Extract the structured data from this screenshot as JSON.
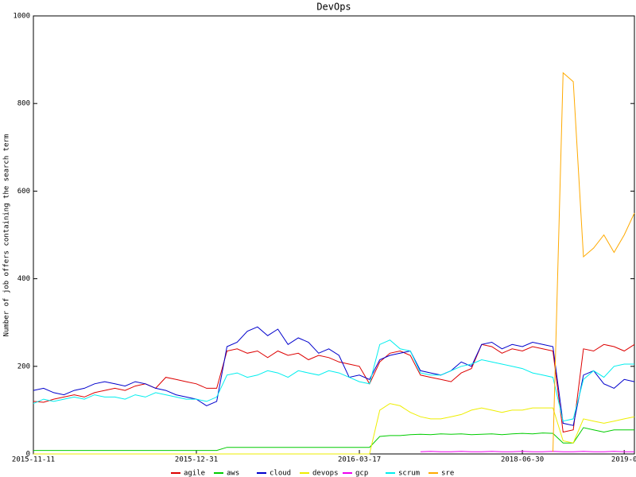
{
  "chart_data": {
    "type": "line",
    "title": "DevOps",
    "y_label": "Number of job offers containing the search term",
    "categories": [
      "2015-11-11",
      null,
      null,
      null,
      null,
      null,
      null,
      null,
      null,
      null,
      null,
      null,
      null,
      null,
      null,
      null,
      "2015-12-31",
      null,
      null,
      null,
      null,
      null,
      null,
      null,
      null,
      null,
      null,
      null,
      null,
      null,
      null,
      null,
      "2016-03-17",
      null,
      null,
      null,
      null,
      null,
      null,
      null,
      null,
      null,
      null,
      null,
      null,
      null,
      null,
      null,
      "2018-06-30",
      null,
      null,
      null,
      null,
      null,
      null,
      null,
      null,
      null,
      "2019-0",
      null
    ],
    "ylim": [
      0,
      1000
    ],
    "yticks": [
      0,
      200,
      400,
      600,
      800,
      1000
    ],
    "grid": false,
    "series": [
      {
        "name": "agile",
        "color": "#dd0000",
        "values": [
          120,
          118,
          125,
          130,
          135,
          130,
          140,
          145,
          150,
          145,
          155,
          160,
          150,
          175,
          170,
          165,
          160,
          150,
          150,
          235,
          240,
          230,
          235,
          220,
          235,
          225,
          230,
          215,
          225,
          220,
          210,
          205,
          200,
          160,
          210,
          230,
          235,
          225,
          180,
          175,
          170,
          165,
          185,
          195,
          250,
          245,
          230,
          240,
          235,
          245,
          240,
          235,
          50,
          55,
          240,
          235,
          250,
          245,
          235,
          250
        ]
      },
      {
        "name": "aws",
        "color": "#00cc00",
        "values": [
          8,
          8,
          8,
          8,
          8,
          8,
          8,
          8,
          8,
          8,
          8,
          8,
          8,
          8,
          8,
          8,
          8,
          8,
          8,
          15,
          15,
          15,
          15,
          15,
          15,
          15,
          15,
          15,
          15,
          15,
          15,
          15,
          15,
          15,
          40,
          42,
          42,
          44,
          45,
          44,
          46,
          45,
          46,
          44,
          45,
          46,
          44,
          46,
          47,
          46,
          48,
          47,
          25,
          25,
          60,
          55,
          50,
          55,
          55,
          55
        ]
      },
      {
        "name": "cloud",
        "color": "#0000cc",
        "values": [
          145,
          150,
          140,
          135,
          145,
          150,
          160,
          165,
          160,
          155,
          165,
          160,
          150,
          145,
          135,
          130,
          125,
          110,
          120,
          245,
          255,
          280,
          290,
          270,
          285,
          250,
          265,
          255,
          230,
          240,
          225,
          175,
          180,
          170,
          215,
          225,
          230,
          235,
          190,
          185,
          180,
          190,
          210,
          200,
          250,
          255,
          240,
          250,
          245,
          255,
          250,
          245,
          70,
          65,
          180,
          190,
          160,
          150,
          170,
          165
        ]
      },
      {
        "name": "devops",
        "color": "#eeee00",
        "values": [
          0,
          0,
          0,
          0,
          0,
          0,
          0,
          0,
          0,
          0,
          0,
          0,
          0,
          0,
          0,
          0,
          0,
          0,
          0,
          0,
          0,
          0,
          0,
          0,
          0,
          0,
          0,
          0,
          0,
          0,
          0,
          0,
          0,
          0,
          100,
          115,
          110,
          95,
          85,
          80,
          80,
          85,
          90,
          100,
          105,
          100,
          95,
          100,
          100,
          105,
          105,
          105,
          30,
          25,
          80,
          75,
          70,
          75,
          80,
          85
        ]
      },
      {
        "name": "gcp",
        "color": "#ee00ee",
        "values": [
          null,
          null,
          null,
          null,
          null,
          null,
          null,
          null,
          null,
          null,
          null,
          null,
          null,
          null,
          null,
          null,
          null,
          null,
          null,
          null,
          null,
          null,
          null,
          null,
          null,
          null,
          null,
          null,
          null,
          null,
          null,
          null,
          null,
          null,
          null,
          null,
          null,
          null,
          5,
          6,
          5,
          5,
          6,
          5,
          5,
          6,
          5,
          5,
          6,
          5,
          5,
          6,
          5,
          5,
          6,
          5,
          5,
          6,
          5,
          5
        ]
      },
      {
        "name": "scrum",
        "color": "#00eeee",
        "values": [
          115,
          125,
          120,
          125,
          130,
          125,
          135,
          130,
          130,
          125,
          135,
          130,
          140,
          135,
          130,
          125,
          125,
          120,
          130,
          180,
          185,
          175,
          180,
          190,
          185,
          175,
          190,
          185,
          180,
          190,
          185,
          175,
          165,
          160,
          250,
          260,
          240,
          235,
          185,
          180,
          180,
          190,
          200,
          205,
          215,
          210,
          205,
          200,
          195,
          185,
          180,
          175,
          75,
          80,
          170,
          190,
          175,
          200,
          205,
          205
        ]
      },
      {
        "name": "sre",
        "color": "#ffaa00",
        "values": [
          null,
          null,
          null,
          null,
          null,
          null,
          null,
          null,
          null,
          null,
          null,
          null,
          null,
          null,
          null,
          null,
          null,
          null,
          null,
          null,
          null,
          null,
          null,
          null,
          null,
          null,
          null,
          null,
          null,
          null,
          null,
          null,
          null,
          null,
          null,
          null,
          null,
          null,
          null,
          null,
          null,
          null,
          null,
          null,
          null,
          null,
          null,
          null,
          null,
          null,
          null,
          5,
          870,
          850,
          450,
          470,
          500,
          460,
          500,
          550
        ]
      }
    ]
  }
}
